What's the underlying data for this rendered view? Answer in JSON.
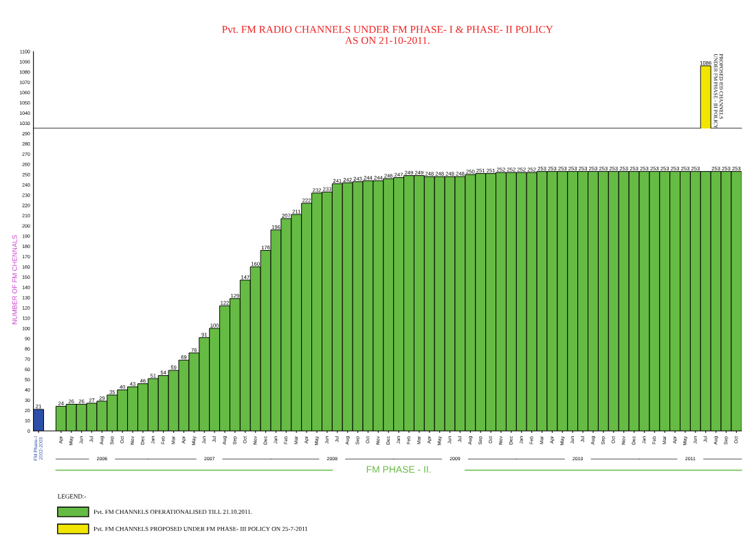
{
  "chart_data": [
    {
      "type": "bar",
      "title": "Pvt. FM RADIO CHANNELS UNDER FM PHASE- I & PHASE- II POLICY\nAS ON 21-10-2011.",
      "series": [
        {
          "name": "Pvt. FM CHANNELS PROPOSED UNDER FM PHASE- III POLICY ON 25-7-2011",
          "color": "#f2e600",
          "values": [
            null,
            null,
            null,
            null,
            null,
            null,
            null,
            null,
            null,
            null,
            null,
            null,
            null,
            null,
            null,
            null,
            null,
            null,
            null,
            null,
            null,
            null,
            null,
            null,
            null,
            null,
            null,
            null,
            null,
            null,
            null,
            null,
            null,
            null,
            null,
            null,
            null,
            null,
            null,
            null,
            null,
            null,
            null,
            null,
            null,
            null,
            null,
            null,
            null,
            null,
            null,
            null,
            null,
            null,
            null,
            null,
            null,
            null,
            null,
            null,
            null,
            null,
            null,
            null,
            1086,
            null,
            null,
            null
          ],
          "value_labels": [
            null,
            null,
            null,
            null,
            null,
            null,
            null,
            null,
            null,
            null,
            null,
            null,
            null,
            null,
            null,
            null,
            null,
            null,
            null,
            null,
            null,
            null,
            null,
            null,
            null,
            null,
            null,
            null,
            null,
            null,
            null,
            null,
            null,
            null,
            null,
            null,
            null,
            null,
            null,
            null,
            null,
            null,
            null,
            null,
            null,
            null,
            null,
            null,
            null,
            null,
            null,
            null,
            null,
            null,
            null,
            null,
            null,
            null,
            null,
            null,
            null,
            null,
            null,
            null,
            "1086",
            null,
            null,
            null
          ]
        }
      ],
      "ylim": [
        1025,
        1100
      ],
      "yticks": [
        1030,
        1040,
        1050,
        1060,
        1070,
        1080,
        1090,
        1100
      ],
      "tick_labels": "y",
      "annotations": [
        "PROPOSED 839 CHANNELS\nUNDER FM PHASE - III POLICY"
      ],
      "grid": false
    },
    {
      "type": "bar",
      "ylabel": "NUMBER OF FM CHENNALS",
      "legend_title": "LEGEND:-",
      "categories": [
        "FM Phase-I\n2002-2003",
        "Apr",
        "May",
        "Jun",
        "Jul",
        "Aug",
        "Sep",
        "Oct",
        "Nov",
        "Dec",
        "Jan",
        "Feb",
        "Mar",
        "Apr",
        "May",
        "Jun",
        "Jul",
        "Aug",
        "Sep",
        "Oct",
        "Nov",
        "Dec",
        "Jan",
        "Feb",
        "Mar",
        "Apr",
        "May",
        "Jun",
        "Jul",
        "Aug",
        "Sep",
        "Oct",
        "Nov",
        "Dec",
        "Jan",
        "Feb",
        "Mar",
        "Apr",
        "May",
        "Jun",
        "Jul",
        "Aug",
        "Sep",
        "Oct",
        "Nov",
        "Dec",
        "Jan",
        "Feb",
        "Mar",
        "Apr",
        "May",
        "Jun",
        "Jul",
        "Aug",
        "Sep",
        "Oct",
        "Nov",
        "Dec",
        "Jan",
        "Feb",
        "Mar",
        "Apr",
        "May",
        "Jun",
        "Jul",
        "Aug",
        "Sep",
        "Oct"
      ],
      "series": [
        {
          "name": "Pvt. FM CHANNELS OPERATIONALISED TILL 21.10.2011.",
          "color": "#66bb44",
          "colors": [
            "#2e4fa8",
            "#66bb44",
            "#66bb44",
            "#66bb44",
            "#66bb44",
            "#66bb44",
            "#66bb44",
            "#66bb44",
            "#66bb44",
            "#66bb44",
            "#66bb44",
            "#66bb44",
            "#66bb44",
            "#66bb44",
            "#66bb44",
            "#66bb44",
            "#66bb44",
            "#66bb44",
            "#66bb44",
            "#66bb44",
            "#66bb44",
            "#66bb44",
            "#66bb44",
            "#66bb44",
            "#66bb44",
            "#66bb44",
            "#66bb44",
            "#66bb44",
            "#66bb44",
            "#66bb44",
            "#66bb44",
            "#66bb44",
            "#66bb44",
            "#66bb44",
            "#66bb44",
            "#66bb44",
            "#66bb44",
            "#66bb44",
            "#66bb44",
            "#66bb44",
            "#66bb44",
            "#66bb44",
            "#66bb44",
            "#66bb44",
            "#66bb44",
            "#66bb44",
            "#66bb44",
            "#66bb44",
            "#66bb44",
            "#66bb44",
            "#66bb44",
            "#66bb44",
            "#66bb44",
            "#66bb44",
            "#66bb44",
            "#66bb44",
            "#66bb44",
            "#66bb44",
            "#66bb44",
            "#66bb44",
            "#66bb44",
            "#66bb44",
            "#66bb44",
            "#66bb44",
            "#66bb44",
            "#66bb44",
            "#66bb44",
            "#66bb44"
          ],
          "values": [
            21,
            24,
            26,
            26,
            27,
            29,
            35,
            40,
            43,
            46,
            51,
            54,
            59,
            69,
            76,
            91,
            100,
            122,
            129,
            147,
            160,
            176,
            196,
            207,
            211,
            222,
            232,
            233,
            241,
            242,
            243,
            244,
            244,
            246,
            247,
            249,
            249,
            248,
            248,
            248,
            248,
            250,
            251,
            251,
            252,
            252,
            252,
            252,
            253,
            253,
            253,
            253,
            253,
            253,
            253,
            253,
            253,
            253,
            253,
            253,
            253,
            253,
            253,
            253,
            253,
            253,
            253,
            253
          ],
          "value_labels": [
            "21",
            "24",
            "26",
            "26",
            "27",
            "29",
            "35",
            "40",
            "43",
            "46",
            "51",
            "54",
            "59",
            "69",
            "76",
            "91",
            "100",
            "122",
            "129",
            "147",
            "160",
            "176",
            "196",
            "207",
            "211",
            "222",
            "232",
            "233",
            "241",
            "242",
            "243",
            "244",
            "244",
            "246",
            "247",
            "249",
            "249",
            "248",
            "248",
            "248",
            "248",
            "250",
            "251",
            "251",
            "252",
            "252",
            "252",
            "252",
            "253",
            "253",
            "253",
            "253",
            "253",
            "253",
            "253",
            "253",
            "253",
            "253",
            "253",
            "253",
            "253",
            "253",
            "253",
            "253",
            null,
            "253",
            "253",
            "253"
          ]
        }
      ],
      "ylim": [
        0,
        295
      ],
      "yticks": [
        0,
        10,
        20,
        30,
        40,
        50,
        60,
        70,
        80,
        90,
        100,
        110,
        120,
        130,
        140,
        150,
        160,
        170,
        180,
        190,
        200,
        210,
        220,
        230,
        240,
        250,
        260,
        270,
        280,
        290
      ],
      "annotations": [
        "2006",
        "2007",
        "2008",
        "2009",
        "2010",
        "2011",
        "FM PHASE - II."
      ],
      "legend": "bottom",
      "grid": false
    }
  ]
}
